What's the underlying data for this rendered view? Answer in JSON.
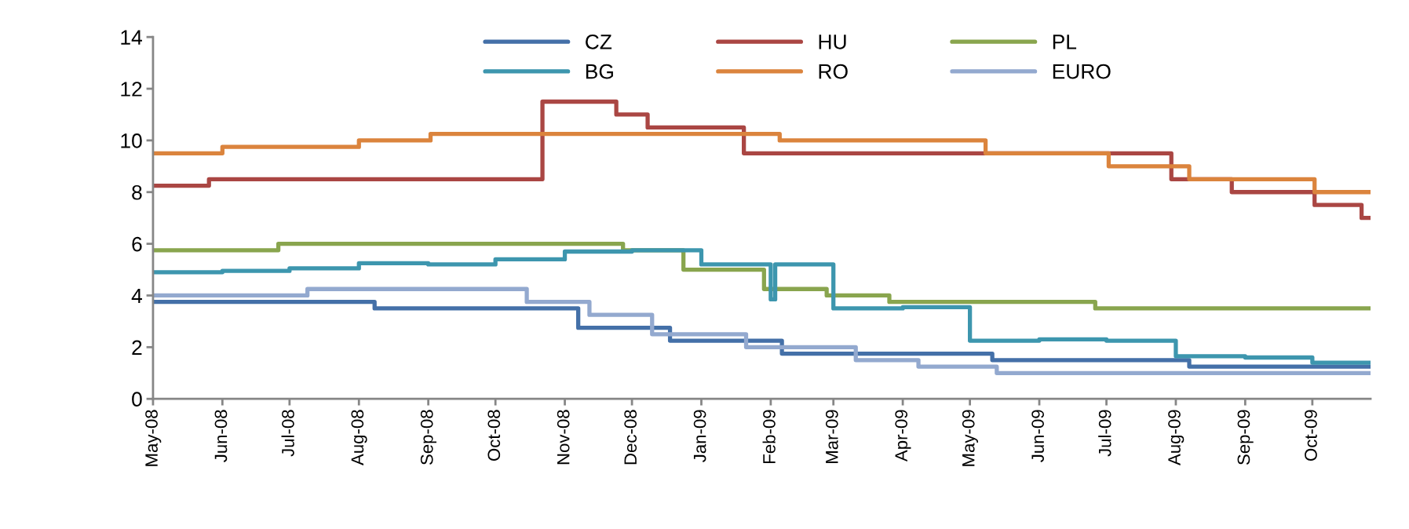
{
  "chart_data": {
    "type": "step",
    "xlim": [
      "2008-05-01",
      "2009-10-27"
    ],
    "xticks": [
      {
        "value": "2008-05-01",
        "label": "May-08"
      },
      {
        "value": "2008-06-01",
        "label": "Jun-08"
      },
      {
        "value": "2008-07-01",
        "label": "Jul-08"
      },
      {
        "value": "2008-08-01",
        "label": "Aug-08"
      },
      {
        "value": "2008-09-01",
        "label": "Sep-08"
      },
      {
        "value": "2008-10-01",
        "label": "Oct-08"
      },
      {
        "value": "2008-11-01",
        "label": "Nov-08"
      },
      {
        "value": "2008-12-01",
        "label": "Dec-08"
      },
      {
        "value": "2009-01-01",
        "label": "Jan-09"
      },
      {
        "value": "2009-02-01",
        "label": "Feb-09"
      },
      {
        "value": "2009-03-01",
        "label": "Mar-09"
      },
      {
        "value": "2009-04-01",
        "label": "Apr-09"
      },
      {
        "value": "2009-05-01",
        "label": "May-09"
      },
      {
        "value": "2009-06-01",
        "label": "Jun-09"
      },
      {
        "value": "2009-07-01",
        "label": "Jul-09"
      },
      {
        "value": "2009-08-01",
        "label": "Aug-09"
      },
      {
        "value": "2009-09-01",
        "label": "Sep-09"
      },
      {
        "value": "2009-10-01",
        "label": "Oct-09"
      }
    ],
    "ylim": [
      0,
      14
    ],
    "yticks": [
      0,
      2,
      4,
      6,
      8,
      10,
      12,
      14
    ],
    "grid": false,
    "legend": "top",
    "marker": "none",
    "line_style": "solid",
    "series": [
      {
        "name": "CZ",
        "color": "#4470a8",
        "x": [
          "2008-05-01",
          "2008-08-08",
          "2008-11-07",
          "2008-12-18",
          "2009-02-06",
          "2009-05-11",
          "2009-08-07",
          "2009-10-27"
        ],
        "values": [
          3.75,
          3.5,
          2.75,
          2.25,
          1.75,
          1.5,
          1.25,
          1.25
        ]
      },
      {
        "name": "HU",
        "color": "#aa4643",
        "x": [
          "2008-05-01",
          "2008-05-26",
          "2008-10-22",
          "2008-11-24",
          "2008-12-08",
          "2009-01-20",
          "2009-07-30",
          "2009-08-26",
          "2009-10-02",
          "2009-10-23",
          "2009-10-27"
        ],
        "values": [
          8.25,
          8.5,
          11.5,
          11.0,
          10.5,
          9.5,
          8.5,
          8.0,
          7.5,
          7.0,
          7.0
        ]
      },
      {
        "name": "PL",
        "color": "#89a54e",
        "x": [
          "2008-05-01",
          "2008-06-26",
          "2008-11-27",
          "2008-12-24",
          "2009-01-29",
          "2009-02-26",
          "2009-03-26",
          "2009-06-26",
          "2009-10-27"
        ],
        "values": [
          5.75,
          6.0,
          5.75,
          5.0,
          4.25,
          4.0,
          3.75,
          3.5,
          3.5
        ]
      },
      {
        "name": "BG",
        "color": "#3d96ae",
        "x": [
          "2008-05-01",
          "2008-06-01",
          "2008-07-01",
          "2008-08-01",
          "2008-09-01",
          "2008-10-01",
          "2008-11-01",
          "2008-12-01",
          "2009-01-01",
          "2009-02-01",
          "2009-02-03",
          "2009-03-01",
          "2009-04-01",
          "2009-05-01",
          "2009-06-01",
          "2009-07-01",
          "2009-08-01",
          "2009-09-01",
          "2009-10-01",
          "2009-10-27"
        ],
        "values": [
          4.9,
          4.95,
          5.05,
          5.25,
          5.2,
          5.4,
          5.7,
          5.75,
          5.2,
          3.85,
          5.2,
          3.5,
          3.55,
          2.25,
          2.3,
          2.25,
          1.65,
          1.6,
          1.4,
          1.4
        ]
      },
      {
        "name": "RO",
        "color": "#db843d",
        "x": [
          "2008-05-01",
          "2008-06-01",
          "2008-08-01",
          "2008-09-02",
          "2009-02-05",
          "2009-05-08",
          "2009-07-02",
          "2009-08-07",
          "2009-10-02",
          "2009-10-27"
        ],
        "values": [
          9.5,
          9.75,
          10.0,
          10.25,
          10.0,
          9.5,
          9.0,
          8.5,
          8.0,
          8.0
        ]
      },
      {
        "name": "EURO",
        "color": "#93a9cf",
        "x": [
          "2008-05-01",
          "2008-07-09",
          "2008-10-15",
          "2008-11-12",
          "2008-12-10",
          "2009-01-21",
          "2009-03-11",
          "2009-04-08",
          "2009-05-13",
          "2009-10-27"
        ],
        "values": [
          4.0,
          4.25,
          3.75,
          3.25,
          2.5,
          2.0,
          1.5,
          1.25,
          1.0,
          1.0
        ]
      }
    ]
  }
}
